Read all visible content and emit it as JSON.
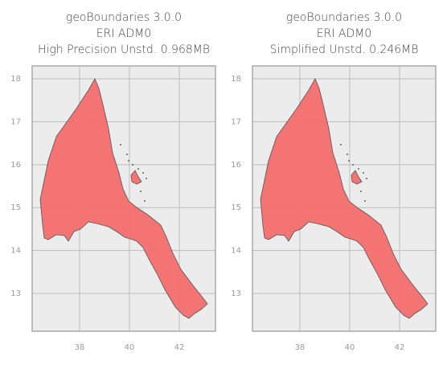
{
  "chart_data": [
    {
      "type": "map",
      "title": [
        "geoBoundaries 3.0.0",
        "ERI ADM0",
        "High Precision Unstd. 0.968MB"
      ],
      "xlim": [
        36.1,
        43.45
      ],
      "ylim": [
        12.12,
        18.3
      ],
      "xticks": [
        38,
        40,
        42
      ],
      "yticks": [
        13,
        14,
        15,
        16,
        17,
        18
      ],
      "grid": true,
      "color": "#f46d6d"
    },
    {
      "type": "map",
      "title": [
        "geoBoundaries 3.0.0",
        "ERI ADM0",
        "Simplified Unstd. 0.246MB"
      ],
      "xlim": [
        36.1,
        43.45
      ],
      "ylim": [
        12.12,
        18.3
      ],
      "xticks": [
        38,
        40,
        42
      ],
      "yticks": [
        13,
        14,
        15,
        16,
        17,
        18
      ],
      "grid": true,
      "color": "#f46d6d"
    }
  ]
}
